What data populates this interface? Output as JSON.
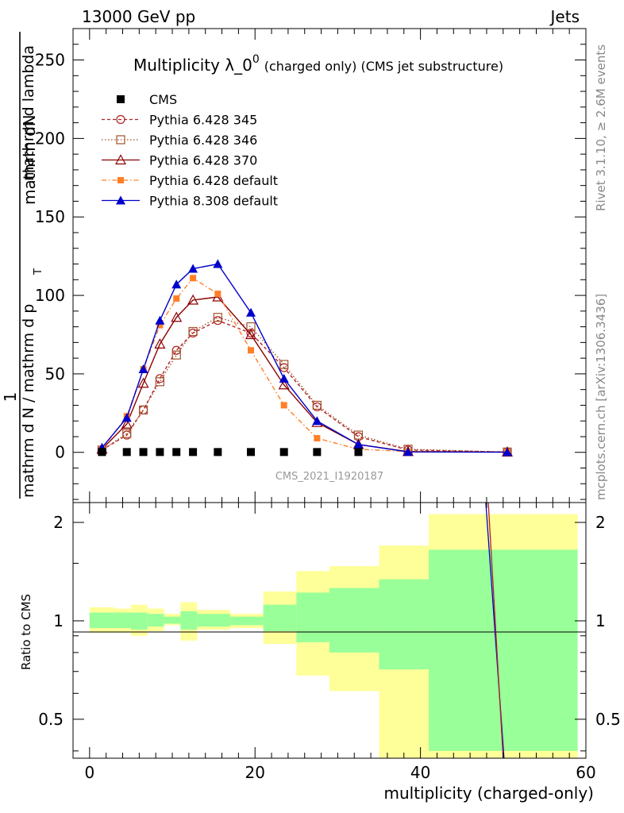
{
  "header": {
    "energy_label": "13000 GeV pp",
    "process_label": "Jets"
  },
  "side_labels": {
    "rivet": "Rivet 3.1.10, ≥ 2.6M events",
    "mcplots": "mcplots.cern.ch [arXiv:1306.3436]"
  },
  "watermark": "CMS_2021_I1920187",
  "chart_data": {
    "type": "line",
    "title": "Multiplicity λ_0",
    "title_superscript": "0",
    "title_suffix": "(charged only) (CMS jet substructure)",
    "xlabel": "multiplicity (charged-only)",
    "ylabel_numerator": "mathrm d",
    "ylabel_numerator_var": "N",
    "ylabel_one": "1",
    "ylabel_denominator": "mathrm d N / mathrm d p",
    "ylabel_denominator_var": "mathrm d p",
    "ylabel_denominator_sub": "T",
    "ylabel_denominator_tail": "mathrm d lambda",
    "ratio_ylabel": "Ratio to CMS",
    "xlim": [
      -2,
      60
    ],
    "ylim": [
      -32,
      270
    ],
    "ratio_ylim": [
      0.38,
      2.3
    ],
    "x_ticks": [
      0,
      20,
      40,
      60
    ],
    "y_ticks": [
      0,
      50,
      100,
      150,
      200,
      250
    ],
    "ratio_ticks": [
      0.5,
      1,
      2
    ],
    "x_tick_labels": [
      "0",
      "20",
      "40",
      "60"
    ],
    "y_tick_labels": [
      "0",
      "50",
      "100",
      "150",
      "200",
      "250"
    ],
    "ratio_tick_labels": [
      "0.5",
      "1",
      "2"
    ],
    "data": {
      "name": "CMS",
      "x": [
        1.5,
        4.5,
        6.5,
        8.5,
        10.5,
        12.5,
        15.5,
        19.5,
        23.5,
        27.5,
        32.5
      ],
      "y": [
        0.2,
        0.2,
        0.2,
        0.2,
        0.2,
        0.2,
        0.2,
        0.2,
        0.2,
        0.2,
        0.2
      ]
    },
    "bins": [
      {
        "lo": 0,
        "hi": 3,
        "inner": [
          0.95,
          1.06
        ],
        "outer": [
          0.92,
          1.1
        ]
      },
      {
        "lo": 3,
        "hi": 5,
        "inner": [
          0.95,
          1.06
        ],
        "outer": [
          0.92,
          1.09
        ]
      },
      {
        "lo": 5,
        "hi": 7,
        "inner": [
          0.94,
          1.06
        ],
        "outer": [
          0.9,
          1.12
        ]
      },
      {
        "lo": 7,
        "hi": 9,
        "inner": [
          0.96,
          1.05
        ],
        "outer": [
          0.93,
          1.09
        ]
      },
      {
        "lo": 9,
        "hi": 11,
        "inner": [
          0.98,
          1.03
        ],
        "outer": [
          0.97,
          1.05
        ]
      },
      {
        "lo": 11,
        "hi": 13,
        "inner": [
          0.94,
          1.07
        ],
        "outer": [
          0.87,
          1.14
        ]
      },
      {
        "lo": 13,
        "hi": 17,
        "inner": [
          0.96,
          1.05
        ],
        "outer": [
          0.94,
          1.08
        ]
      },
      {
        "lo": 17,
        "hi": 21,
        "inner": [
          0.97,
          1.03
        ],
        "outer": [
          0.95,
          1.05
        ]
      },
      {
        "lo": 21,
        "hi": 25,
        "inner": [
          0.93,
          1.12
        ],
        "outer": [
          0.85,
          1.23
        ]
      },
      {
        "lo": 25,
        "hi": 29,
        "inner": [
          0.86,
          1.22
        ],
        "outer": [
          0.68,
          1.42
        ]
      },
      {
        "lo": 29,
        "hi": 35,
        "inner": [
          0.8,
          1.26
        ],
        "outer": [
          0.61,
          1.47
        ]
      },
      {
        "lo": 35,
        "hi": 41,
        "inner": [
          0.71,
          1.34
        ],
        "outer": [
          0.38,
          1.7
        ]
      },
      {
        "lo": 41,
        "hi": 59,
        "inner": [
          0.4,
          1.65
        ],
        "outer": [
          0.38,
          2.12
        ]
      }
    ],
    "series": [
      {
        "name": "Pythia 6.428 345",
        "color": "#b22222",
        "dash": "4,3",
        "marker": "circle-open",
        "x": [
          1.5,
          4.5,
          6.5,
          8.5,
          10.5,
          12.5,
          15.5,
          19.5,
          23.5,
          27.5,
          32.5,
          38.5,
          50.5
        ],
        "y": [
          1.5,
          11,
          27,
          47,
          65,
          76,
          84,
          76,
          54,
          29,
          10,
          1.5,
          0.2
        ]
      },
      {
        "name": "Pythia 6.428 346",
        "color": "#a0522d",
        "dash": "1.5,2.5",
        "marker": "square-open",
        "x": [
          1.5,
          4.5,
          6.5,
          8.5,
          10.5,
          12.5,
          15.5,
          19.5,
          23.5,
          27.5,
          32.5,
          38.5,
          50.5
        ],
        "y": [
          1.5,
          12,
          27,
          45,
          62,
          77,
          86,
          80,
          56,
          30,
          11,
          2,
          0.2
        ]
      },
      {
        "name": "Pythia 6.428 370",
        "color": "#8b0000",
        "dash": "",
        "marker": "triangle-open",
        "x": [
          1.5,
          4.5,
          6.5,
          8.5,
          10.5,
          12.5,
          15.5,
          19.5,
          23.5,
          27.5,
          32.5,
          38.5,
          50.5
        ],
        "y": [
          2,
          18,
          44,
          69,
          86,
          97,
          99,
          75,
          43,
          19,
          5,
          0.5,
          0.2
        ]
      },
      {
        "name": "Pythia 6.428 default",
        "color": "#ff7f27",
        "dash": "6,3,1.5,3",
        "marker": "square-filled",
        "x": [
          1.5,
          4.5,
          6.5,
          8.5,
          10.5,
          12.5,
          15.5,
          19.5,
          23.5,
          27.5,
          32.5,
          38.5,
          50.5
        ],
        "y": [
          2,
          23,
          53,
          81,
          98,
          111,
          101,
          65,
          30,
          9,
          2,
          0.5,
          0.2
        ]
      },
      {
        "name": "Pythia 8.308 default",
        "color": "#0000cc",
        "dash": "",
        "marker": "triangle-filled",
        "x": [
          1.5,
          4.5,
          6.5,
          8.5,
          10.5,
          12.5,
          15.5,
          19.5,
          23.5,
          27.5,
          32.5,
          38.5,
          50.5
        ],
        "y": [
          3,
          22,
          53,
          84,
          107,
          117,
          120,
          89,
          47,
          20,
          5,
          0.3,
          0.1
        ]
      }
    ],
    "ratio_lines": [
      {
        "name": "Pythia 8.308 default",
        "color": "#0000cc",
        "x": [
          47.9,
          50.1
        ],
        "y": [
          2.3,
          0.38
        ]
      },
      {
        "name": "Pythia 6.428 345",
        "color": "#b22222",
        "x": [
          48.2,
          50.0
        ],
        "y": [
          2.3,
          0.38
        ]
      }
    ]
  }
}
